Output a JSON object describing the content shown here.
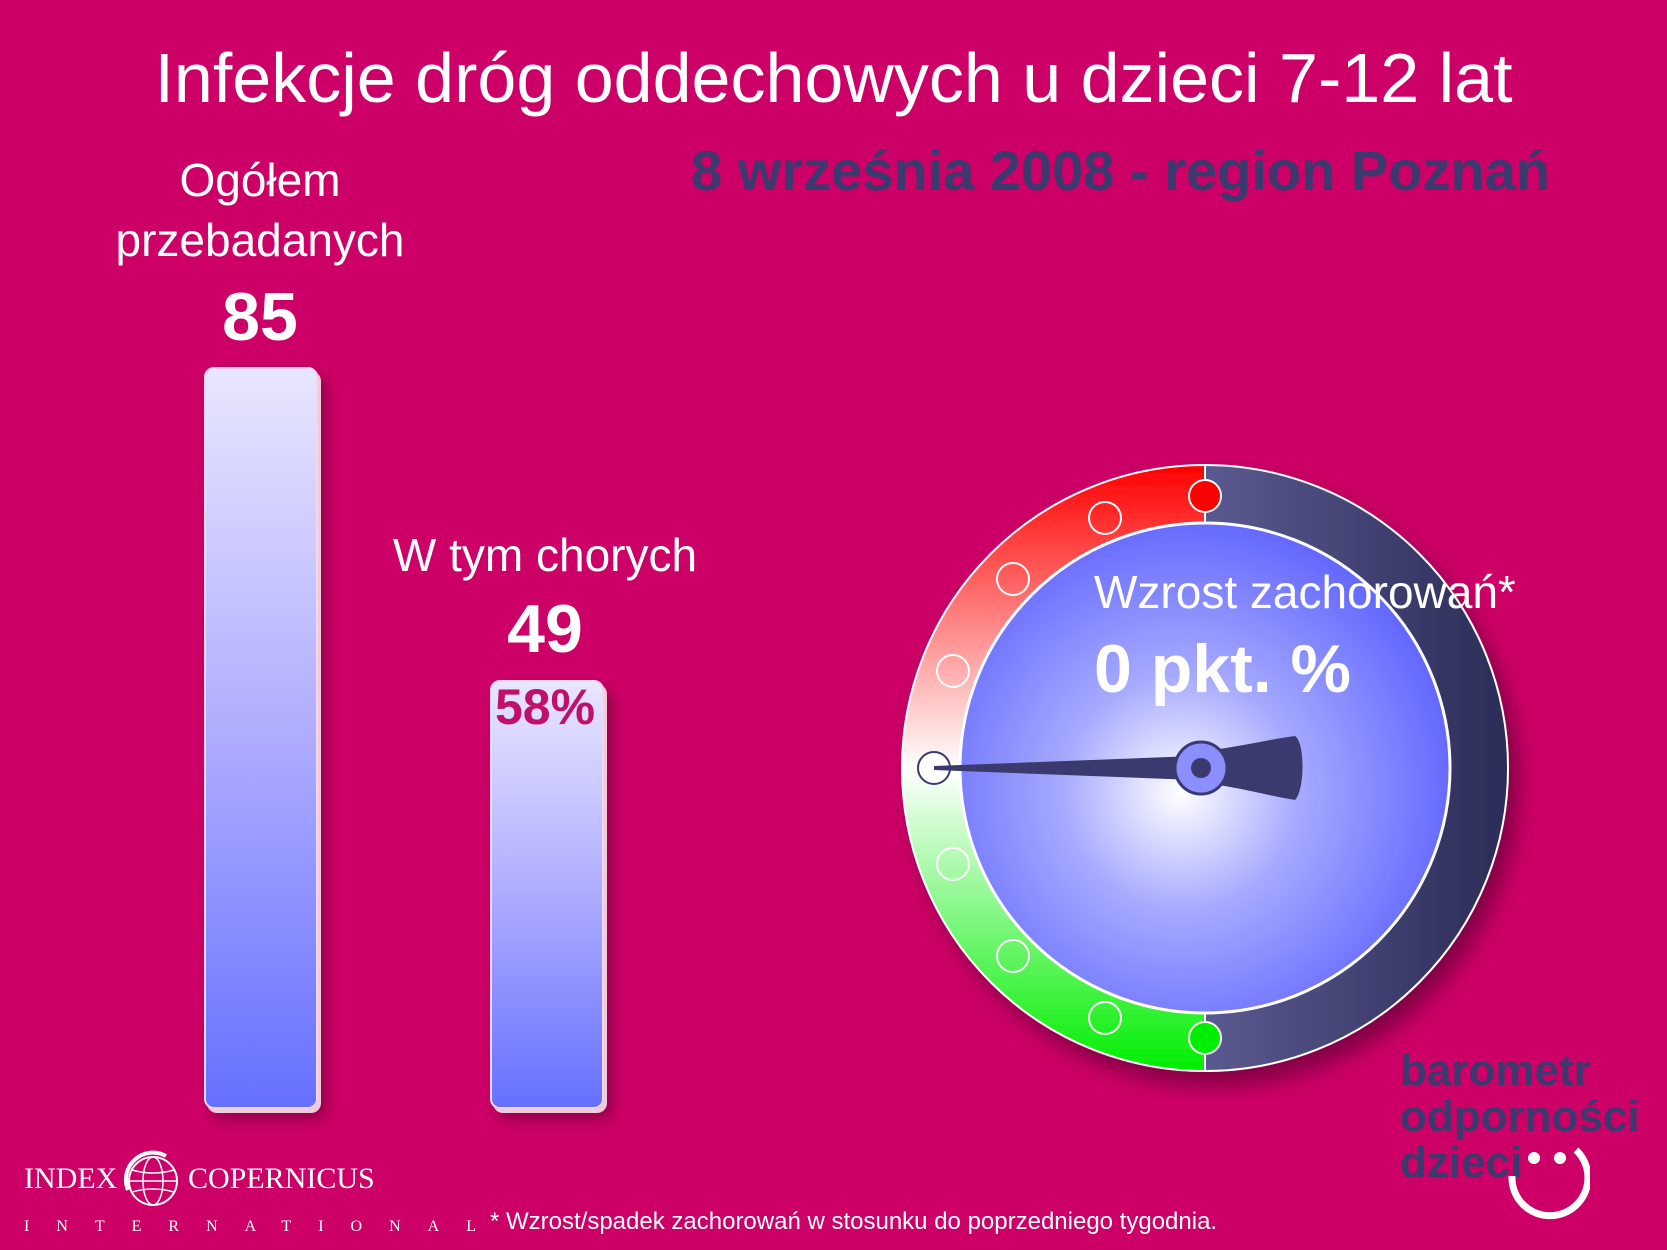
{
  "chart_data": {
    "type": "bar",
    "title": "Infekcje dróg oddechowych u dzieci 7-12 lat",
    "subtitle": "8 września 2008 - region Poznań",
    "categories": [
      "Ogółem przebadanych",
      "W tym chorych"
    ],
    "series": [
      {
        "values": [
          85,
          49
        ]
      }
    ],
    "bars": [
      {
        "label_line1": "Ogółem",
        "label_line2": "przebadanych",
        "value": 85,
        "value_text": "85"
      },
      {
        "label_line1": "W tym chorych",
        "value": 49,
        "value_text": "49",
        "percent_text": "58%"
      }
    ],
    "ylim": [
      0,
      85
    ],
    "grid": false
  },
  "gauge": {
    "label": "Wzrost zachorowań*",
    "value_text": "0 pkt. %",
    "value": 0,
    "zones": {
      "top": "#ff0000",
      "middle": "#ffffff",
      "bottom": "#00ee00",
      "back": "#3a3a6e"
    }
  },
  "footnote": "* Wzrost/spadek zachorowań w stosunku do poprzedniego tygodnia.",
  "logos": {
    "index_left": "INDEX",
    "index_right": "COPERNICUS",
    "index_sub": "INTERNATIONAL",
    "barometr_line1": "barometr",
    "barometr_line2": "odporności",
    "barometr_line3": "dzieci"
  },
  "colors": {
    "background": "#cc0066",
    "accent": "#3a3a6e",
    "bar": "#7a80ff"
  }
}
